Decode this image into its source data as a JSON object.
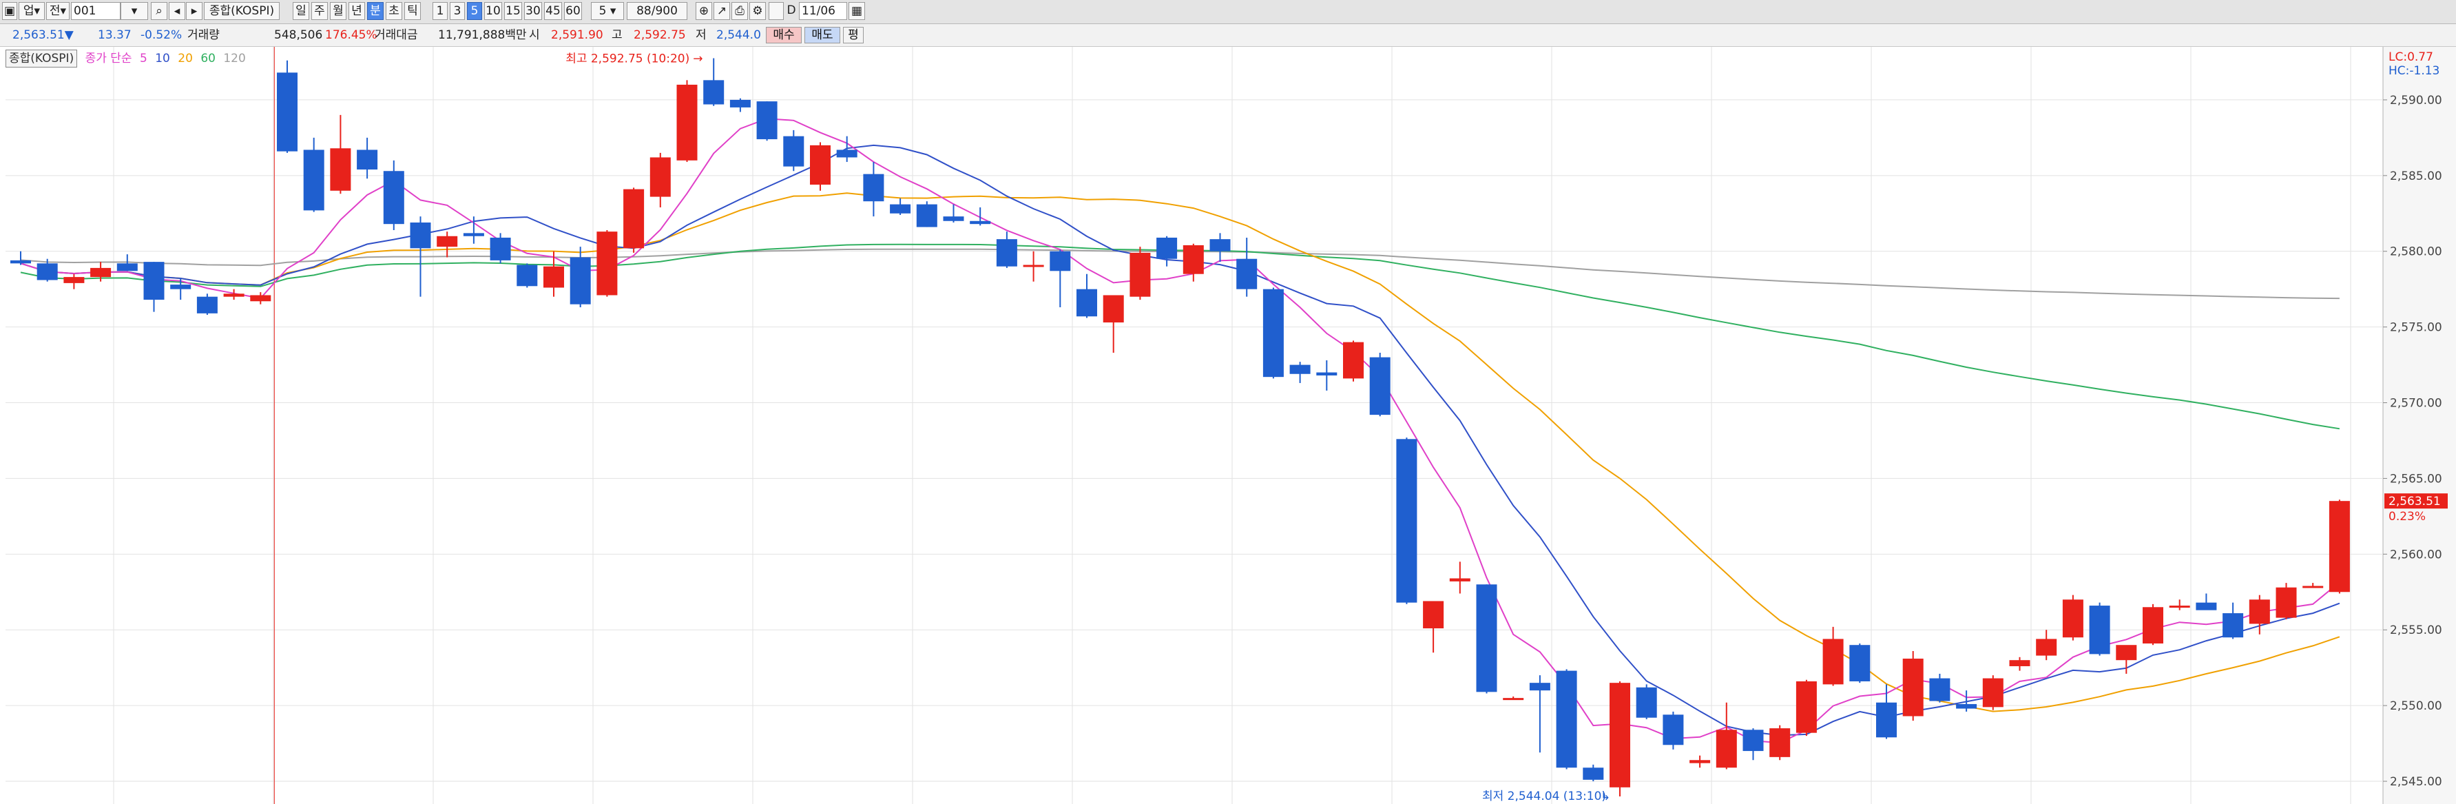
{
  "toolbar": {
    "market": "업",
    "prev_label": "전",
    "code": "001",
    "name": "종합(KOSPI)",
    "periods": [
      "일",
      "주",
      "월",
      "년",
      "분",
      "초",
      "틱"
    ],
    "active_period": "분",
    "intervals": [
      "1",
      "3",
      "5",
      "10",
      "15",
      "30",
      "45",
      "60"
    ],
    "active_interval": "5",
    "interval_select": "5",
    "count": "88/900",
    "date": "11/06"
  },
  "quote": {
    "price": "2,563.51",
    "direction": "▼",
    "change": "13.37",
    "change_pct": "-0.52%",
    "volume_label": "거래량",
    "volume": "548,506",
    "volume_pct": "176.45%",
    "amount_label": "거래대금",
    "amount": "11,791,888백만",
    "open_label": "시",
    "open": "2,591.90",
    "high_label": "고",
    "high": "2,592.75",
    "low_label": "저",
    "low": "2,544.0",
    "buy": "매수",
    "sell": "매도",
    "eval": "평"
  },
  "legend": {
    "index": "종합(KOSPI)",
    "ma_label": "종가 단순",
    "periods": [
      "5",
      "10",
      "20",
      "60",
      "120"
    ]
  },
  "colors": {
    "up": "#e8221b",
    "down": "#1f5fcf",
    "ma5": "#e040c8",
    "ma10": "#3050c8",
    "ma20": "#f0a000",
    "ma60": "#30b060",
    "ma120": "#a0a0a0",
    "grid": "#e2e2e2"
  },
  "chart_data": {
    "type": "candlestick",
    "ylim": [
      2543.5,
      2593.5
    ],
    "y_ticks": [
      "2,590.00",
      "2,585.00",
      "2,580.00",
      "2,575.00",
      "2,570.00",
      "2,565.00",
      "2,560.00",
      "2,555.00",
      "2,550.00",
      "2,545.00"
    ],
    "y_tick_values": [
      2590,
      2585,
      2580,
      2575,
      2570,
      2565,
      2560,
      2555,
      2550,
      2545
    ],
    "lc_label": "LC:0.77",
    "hc_label": "HC:-1.13",
    "last_price": "2,563.51",
    "last_pct": "0.23%",
    "last_value": 2563.51,
    "max_label": "최고 2,592.75 (10:20)",
    "min_label": "최저 2,544.04 (13:10)",
    "candles": [
      [
        2579.4,
        2580.0,
        2579.1,
        2579.2
      ],
      [
        2579.2,
        2579.5,
        2578.0,
        2578.1
      ],
      [
        2577.9,
        2578.5,
        2577.5,
        2578.3
      ],
      [
        2578.3,
        2579.3,
        2578.0,
        2578.9
      ],
      [
        2579.2,
        2579.8,
        2578.7,
        2578.7
      ],
      [
        2579.3,
        2579.3,
        2576.0,
        2576.8
      ],
      [
        2577.8,
        2578.2,
        2576.8,
        2577.5
      ],
      [
        2577.0,
        2577.2,
        2575.8,
        2575.9
      ],
      [
        2577.0,
        2577.5,
        2576.8,
        2577.2
      ],
      [
        2576.7,
        2577.3,
        2576.5,
        2577.1
      ],
      [
        2591.8,
        2592.6,
        2586.5,
        2586.6
      ],
      [
        2586.7,
        2587.5,
        2582.6,
        2582.7
      ],
      [
        2584.0,
        2589.0,
        2583.8,
        2586.8
      ],
      [
        2586.7,
        2587.5,
        2584.8,
        2585.4
      ],
      [
        2585.3,
        2586.0,
        2581.4,
        2581.8
      ],
      [
        2581.9,
        2582.3,
        2577.0,
        2580.2
      ],
      [
        2580.3,
        2581.3,
        2579.6,
        2581.0
      ],
      [
        2581.2,
        2582.3,
        2580.5,
        2581.0
      ],
      [
        2580.9,
        2581.2,
        2579.2,
        2579.4
      ],
      [
        2579.1,
        2579.2,
        2577.6,
        2577.7
      ],
      [
        2577.6,
        2580.0,
        2577.0,
        2579.0
      ],
      [
        2579.6,
        2580.3,
        2576.3,
        2576.5
      ],
      [
        2577.1,
        2581.4,
        2577.0,
        2581.3
      ],
      [
        2580.2,
        2584.2,
        2579.9,
        2584.1
      ],
      [
        2583.6,
        2586.5,
        2582.9,
        2586.2
      ],
      [
        2586.0,
        2591.3,
        2585.9,
        2591.0
      ],
      [
        2591.3,
        2592.75,
        2589.6,
        2589.7
      ],
      [
        2590.0,
        2590.1,
        2589.2,
        2589.5
      ],
      [
        2589.9,
        2589.9,
        2587.3,
        2587.4
      ],
      [
        2587.6,
        2588.0,
        2585.3,
        2585.6
      ],
      [
        2584.4,
        2587.2,
        2584.0,
        2587.0
      ],
      [
        2586.7,
        2587.6,
        2585.9,
        2586.2
      ],
      [
        2585.1,
        2585.9,
        2582.3,
        2583.3
      ],
      [
        2583.1,
        2583.5,
        2582.4,
        2582.5
      ],
      [
        2583.1,
        2583.3,
        2581.6,
        2581.6
      ],
      [
        2582.3,
        2583.1,
        2581.9,
        2582.0
      ],
      [
        2582.0,
        2582.9,
        2581.7,
        2581.8
      ],
      [
        2580.8,
        2581.3,
        2578.9,
        2579.0
      ],
      [
        2579.0,
        2580.0,
        2578.0,
        2579.1
      ],
      [
        2580.0,
        2580.1,
        2576.3,
        2578.7
      ],
      [
        2577.5,
        2578.5,
        2575.6,
        2575.7
      ],
      [
        2575.3,
        2576.8,
        2573.3,
        2577.1
      ],
      [
        2577.0,
        2580.3,
        2576.8,
        2579.9
      ],
      [
        2580.9,
        2581.0,
        2579.0,
        2579.5
      ],
      [
        2578.5,
        2580.5,
        2578.0,
        2580.4
      ],
      [
        2580.8,
        2581.2,
        2579.3,
        2580.0
      ],
      [
        2579.5,
        2580.9,
        2577.0,
        2577.5
      ],
      [
        2577.5,
        2577.6,
        2571.6,
        2571.7
      ],
      [
        2572.5,
        2572.7,
        2571.3,
        2571.9
      ],
      [
        2572.0,
        2572.8,
        2570.8,
        2571.8
      ],
      [
        2571.6,
        2574.1,
        2571.4,
        2574.0
      ],
      [
        2573.0,
        2573.3,
        2569.1,
        2569.2
      ],
      [
        2567.6,
        2567.7,
        2556.7,
        2556.8
      ],
      [
        2555.1,
        2556.9,
        2553.5,
        2556.9
      ],
      [
        2558.2,
        2559.5,
        2557.4,
        2558.4
      ],
      [
        2558.0,
        2558.0,
        2550.8,
        2550.9
      ],
      [
        2550.5,
        2550.6,
        2550.4,
        2550.5
      ],
      [
        2551.5,
        2552.0,
        2546.9,
        2551.0
      ],
      [
        2552.3,
        2552.4,
        2545.8,
        2545.9
      ],
      [
        2545.9,
        2546.1,
        2545.0,
        2545.1
      ],
      [
        2544.6,
        2551.6,
        2544.0,
        2551.5
      ],
      [
        2551.2,
        2551.4,
        2549.1,
        2549.2
      ],
      [
        2549.4,
        2549.6,
        2547.1,
        2547.4
      ],
      [
        2546.2,
        2546.7,
        2545.9,
        2546.4
      ],
      [
        2545.9,
        2550.2,
        2545.8,
        2548.4
      ],
      [
        2548.4,
        2548.5,
        2546.4,
        2547.0
      ],
      [
        2546.6,
        2548.7,
        2546.4,
        2548.5
      ],
      [
        2548.2,
        2551.7,
        2548.0,
        2551.6
      ],
      [
        2551.4,
        2555.2,
        2551.3,
        2554.4
      ],
      [
        2554.0,
        2554.1,
        2551.5,
        2551.6
      ],
      [
        2550.2,
        2551.4,
        2547.8,
        2547.9
      ],
      [
        2549.3,
        2553.6,
        2549.0,
        2553.1
      ],
      [
        2551.8,
        2552.1,
        2550.2,
        2550.3
      ],
      [
        2550.1,
        2551.0,
        2549.6,
        2549.8
      ],
      [
        2549.9,
        2552.0,
        2549.7,
        2551.8
      ],
      [
        2552.6,
        2553.2,
        2552.3,
        2553.0
      ],
      [
        2553.3,
        2555.0,
        2553.0,
        2554.4
      ],
      [
        2554.5,
        2557.3,
        2554.3,
        2557.0
      ],
      [
        2556.6,
        2556.8,
        2553.3,
        2553.4
      ],
      [
        2553.0,
        2553.9,
        2552.1,
        2554.0
      ],
      [
        2554.1,
        2556.7,
        2554.0,
        2556.5
      ],
      [
        2556.6,
        2557.0,
        2556.3,
        2556.6
      ],
      [
        2556.8,
        2557.4,
        2556.4,
        2556.3
      ],
      [
        2556.1,
        2556.8,
        2554.4,
        2554.5
      ],
      [
        2555.4,
        2557.3,
        2554.7,
        2557.0
      ],
      [
        2555.8,
        2558.1,
        2555.7,
        2557.8
      ],
      [
        2557.9,
        2558.1,
        2557.8,
        2557.9
      ],
      [
        2557.5,
        2563.6,
        2557.4,
        2563.51
      ]
    ]
  }
}
